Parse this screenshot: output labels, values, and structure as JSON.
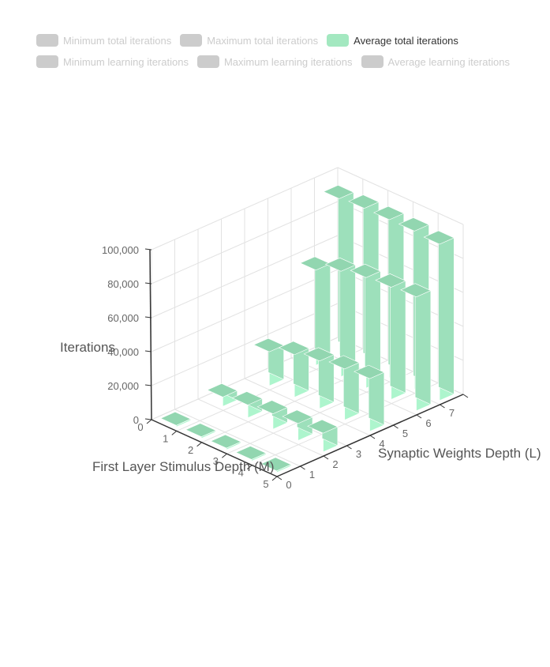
{
  "legend": {
    "row1": [
      {
        "label": "Minimum total iterations",
        "enabled": false,
        "color": "#cccccc"
      },
      {
        "label": "Maximum total iterations",
        "enabled": false,
        "color": "#cccccc"
      },
      {
        "label": "Average total iterations",
        "enabled": true,
        "color": "#a5ecc4"
      }
    ],
    "row2": [
      {
        "label": "Minimum learning iterations",
        "enabled": false,
        "color": "#cccccc"
      },
      {
        "label": "Maximum learning iterations",
        "enabled": false,
        "color": "#cccccc"
      },
      {
        "label": "Average learning iterations",
        "enabled": false,
        "color": "#cccccc"
      }
    ]
  },
  "chart_data": {
    "type": "bar3d",
    "title": "",
    "zlabel": "Iterations",
    "xlabel": "First Layer Stimulus Depth (M)",
    "ylabel": "Synaptic Weights Depth (L)",
    "x_ticks": [
      "0",
      "1",
      "2",
      "3",
      "4",
      "5"
    ],
    "y_ticks": [
      "0",
      "1",
      "2",
      "3",
      "4",
      "5",
      "6",
      "7"
    ],
    "z_ticks": [
      "0",
      "20,000",
      "40,000",
      "60,000",
      "80,000",
      "100,000"
    ],
    "zlim": [
      0,
      100000
    ],
    "grid": true,
    "series": [
      {
        "name": "Average total iterations",
        "color": "#a5ecc4",
        "bars": [
          {
            "m": 1,
            "l": 1,
            "value": 200
          },
          {
            "m": 1,
            "l": 3,
            "value": 5500
          },
          {
            "m": 1,
            "l": 5,
            "value": 20000
          },
          {
            "m": 1,
            "l": 7,
            "value": 56000
          },
          {
            "m": 1,
            "l": 8,
            "value": 92000
          },
          {
            "m": 2,
            "l": 1,
            "value": 300
          },
          {
            "m": 2,
            "l": 3,
            "value": 7500
          },
          {
            "m": 2,
            "l": 5,
            "value": 25000
          },
          {
            "m": 2,
            "l": 7,
            "value": 62000
          },
          {
            "m": 2,
            "l": 8,
            "value": 93000
          },
          {
            "m": 3,
            "l": 1,
            "value": 400
          },
          {
            "m": 3,
            "l": 3,
            "value": 9000
          },
          {
            "m": 3,
            "l": 5,
            "value": 28000
          },
          {
            "m": 3,
            "l": 7,
            "value": 65000
          },
          {
            "m": 3,
            "l": 8,
            "value": 93000
          },
          {
            "m": 4,
            "l": 1,
            "value": 500
          },
          {
            "m": 4,
            "l": 3,
            "value": 10000
          },
          {
            "m": 4,
            "l": 5,
            "value": 30000
          },
          {
            "m": 4,
            "l": 7,
            "value": 66000
          },
          {
            "m": 4,
            "l": 8,
            "value": 93000
          },
          {
            "m": 5,
            "l": 1,
            "value": 600
          },
          {
            "m": 5,
            "l": 3,
            "value": 11000
          },
          {
            "m": 5,
            "l": 5,
            "value": 31000
          },
          {
            "m": 5,
            "l": 7,
            "value": 67000
          },
          {
            "m": 5,
            "l": 8,
            "value": 92000
          }
        ]
      }
    ]
  }
}
